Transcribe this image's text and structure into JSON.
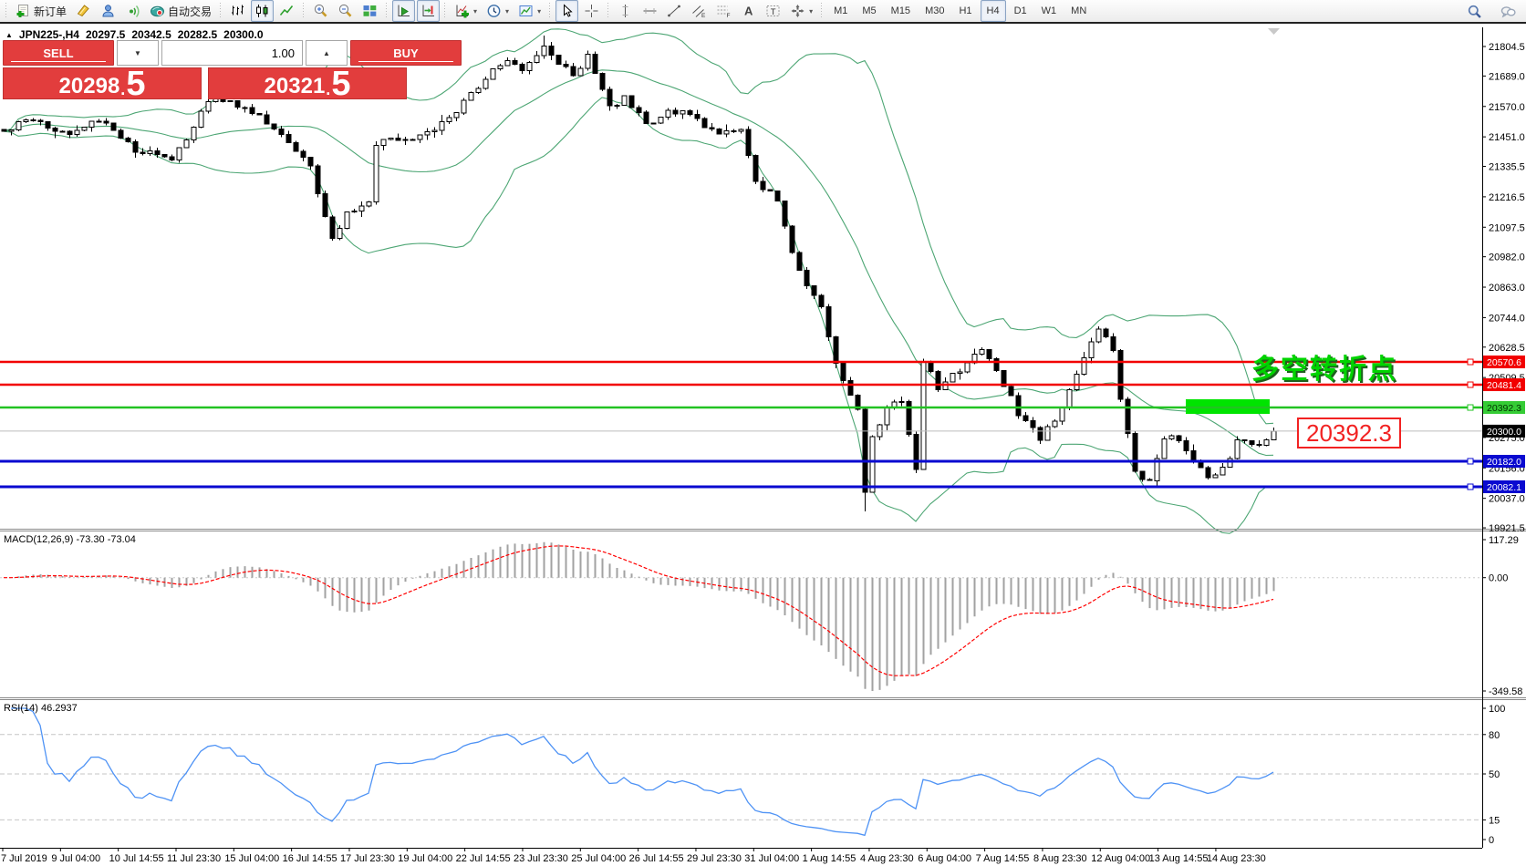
{
  "toolbar": {
    "groups": [
      {
        "items": [
          {
            "name": "new-order",
            "icon": "new-order",
            "label": "新订单"
          },
          {
            "name": "chart-list",
            "icon": "yellow-book"
          },
          {
            "name": "profile",
            "icon": "profile"
          },
          {
            "name": "signals",
            "icon": "signal"
          },
          {
            "name": "auto-trading",
            "icon": "autotrade",
            "label": "自动交易"
          }
        ]
      },
      {
        "items": [
          {
            "name": "bar-chart",
            "icon": "bars"
          },
          {
            "name": "candlestick-chart",
            "icon": "candles",
            "active": true
          },
          {
            "name": "line-chart",
            "icon": "linechart"
          }
        ]
      },
      {
        "items": [
          {
            "name": "zoom-in",
            "icon": "zoom-in"
          },
          {
            "name": "zoom-out",
            "icon": "zoom-out"
          },
          {
            "name": "tile-windows",
            "icon": "tiles"
          }
        ]
      },
      {
        "items": [
          {
            "name": "auto-scroll",
            "icon": "autoscroll",
            "active": true
          },
          {
            "name": "chart-shift",
            "icon": "shift",
            "active": true
          }
        ]
      },
      {
        "items": [
          {
            "name": "indicators",
            "icon": "indicators",
            "dropdown": true
          },
          {
            "name": "periods",
            "icon": "clock",
            "dropdown": true
          },
          {
            "name": "templates",
            "icon": "template",
            "dropdown": true
          }
        ]
      },
      {
        "items": [
          {
            "name": "cursor",
            "icon": "cursor",
            "active": true
          },
          {
            "name": "crosshair",
            "icon": "crosshair"
          }
        ]
      },
      {
        "items": [
          {
            "name": "vertical-line",
            "icon": "vline"
          },
          {
            "name": "horizontal-line",
            "icon": "hline"
          },
          {
            "name": "trendline",
            "icon": "trendline"
          },
          {
            "name": "equidistant-channel",
            "icon": "channel"
          },
          {
            "name": "fibonacci",
            "icon": "fibo"
          },
          {
            "name": "text",
            "icon": "text-a"
          },
          {
            "name": "text-label",
            "icon": "text-t"
          },
          {
            "name": "arrows",
            "icon": "arrows",
            "dropdown": true
          }
        ]
      },
      {
        "items": [
          {
            "name": "tf-m1",
            "text": "M1"
          },
          {
            "name": "tf-m5",
            "text": "M5"
          },
          {
            "name": "tf-m15",
            "text": "M15"
          },
          {
            "name": "tf-m30",
            "text": "M30"
          },
          {
            "name": "tf-h1",
            "text": "H1"
          },
          {
            "name": "tf-h4",
            "text": "H4",
            "active": true
          },
          {
            "name": "tf-d1",
            "text": "D1"
          },
          {
            "name": "tf-w1",
            "text": "W1"
          },
          {
            "name": "tf-mn",
            "text": "MN"
          }
        ]
      }
    ],
    "right_items": [
      {
        "name": "search",
        "icon": "search"
      },
      {
        "name": "chat",
        "icon": "chat"
      }
    ]
  },
  "chart": {
    "header": {
      "collapse": "▲",
      "symbol": "JPN225-,H4",
      "open": "20297.5",
      "high": "20342.5",
      "low": "20282.5",
      "close": "20300.0"
    },
    "trade_panel": {
      "sell_label": "SELL",
      "buy_label": "BUY",
      "volume": "1.00",
      "down_arrow": "▼",
      "up_arrow": "▲",
      "sell_int": "20298",
      "sell_sep": ".",
      "sell_frac": "5",
      "buy_int": "20321",
      "buy_sep": ".",
      "buy_frac": "5"
    },
    "annotations": {
      "turning_point": "多空转折点",
      "level_text": "20392.3"
    }
  },
  "chart_data": {
    "type": "candlestick",
    "symbol": "JPN225-",
    "timeframe": "H4",
    "title": "JPN225-,H4",
    "ohlc_header": {
      "open": 20297.5,
      "high": 20342.5,
      "low": 20282.5,
      "close": 20300.0
    },
    "y_ticks": [
      21804.5,
      21689.0,
      21570.0,
      21451.0,
      21335.5,
      21216.5,
      21097.5,
      20982.0,
      20863.0,
      20744.0,
      20628.5,
      20509.5,
      20275.0,
      20156.0,
      20037.0,
      19921.5
    ],
    "ylim": [
      19921.5,
      21850.0
    ],
    "x_labels": [
      "7 Jul 2019",
      "9 Jul 04:00",
      "10 Jul 14:55",
      "11 Jul 23:30",
      "15 Jul 04:00",
      "16 Jul 14:55",
      "17 Jul 23:30",
      "19 Jul 04:00",
      "22 Jul 14:55",
      "23 Jul 23:30",
      "25 Jul 04:00",
      "26 Jul 14:55",
      "29 Jul 23:30",
      "31 Jul 04:00",
      "1 Aug 14:55",
      "4 Aug 23:30",
      "6 Aug 04:00",
      "7 Aug 14:55",
      "8 Aug 23:30",
      "12 Aug 04:00",
      "13 Aug 14:55",
      "14 Aug 23:30"
    ],
    "hlines": [
      {
        "price": 20570.6,
        "label": "20570.6",
        "color": "#f20000",
        "width": 2.5,
        "box": "#f20000",
        "fg": "#ffffff",
        "handle": true
      },
      {
        "price": 20481.4,
        "label": "20481.4",
        "color": "#f20000",
        "width": 2.5,
        "box": "#f20000",
        "fg": "#ffffff",
        "handle": true
      },
      {
        "price": 20392.3,
        "label": "20392.3",
        "color": "#22c322",
        "width": 2.5,
        "box": "#35cc35",
        "fg": "#003300",
        "handle": true
      },
      {
        "price": 20300.0,
        "label": "20300.0",
        "color": "#bcbcbc",
        "width": 1,
        "box": "#000000",
        "fg": "#ffffff",
        "handle": false
      },
      {
        "price": 20182.0,
        "label": "20182.0",
        "color": "#0a0ad0",
        "width": 3,
        "box": "#0a0ad0",
        "fg": "#ffffff",
        "handle": true
      },
      {
        "price": 20082.1,
        "label": "20082.1",
        "color": "#0a0ad0",
        "width": 3,
        "box": "#0a0ad0",
        "fg": "#ffffff",
        "handle": true
      }
    ],
    "bollinger": {
      "period": 20,
      "deviation": 2,
      "color": "#4da674"
    },
    "candles": {
      "count": 175,
      "noise": 12,
      "last_close": 20300.0,
      "bull_fill": "#ffffff",
      "bear_fill": "#000000",
      "outline": "#000000",
      "keypoints": [
        [
          0,
          21480
        ],
        [
          4,
          21520
        ],
        [
          9,
          21450
        ],
        [
          13,
          21520
        ],
        [
          18,
          21400
        ],
        [
          23,
          21365
        ],
        [
          26,
          21480
        ],
        [
          28,
          21600
        ],
        [
          33,
          21570
        ],
        [
          38,
          21470
        ],
        [
          42,
          21330
        ],
        [
          45,
          21060
        ],
        [
          47,
          21150
        ],
        [
          50,
          21200
        ],
        [
          51,
          21430
        ],
        [
          56,
          21440
        ],
        [
          61,
          21520
        ],
        [
          65,
          21650
        ],
        [
          69,
          21760
        ],
        [
          71,
          21700
        ],
        [
          74,
          21810
        ],
        [
          76,
          21740
        ],
        [
          78,
          21690
        ],
        [
          80,
          21770
        ],
        [
          82,
          21640
        ],
        [
          83,
          21560
        ],
        [
          85,
          21610
        ],
        [
          88,
          21500
        ],
        [
          91,
          21545
        ],
        [
          93,
          21560
        ],
        [
          96,
          21490
        ],
        [
          98,
          21470
        ],
        [
          101,
          21480
        ],
        [
          103,
          21270
        ],
        [
          105,
          21230
        ],
        [
          106,
          21190
        ],
        [
          108,
          21000
        ],
        [
          110,
          20870
        ],
        [
          112,
          20780
        ],
        [
          114,
          20560
        ],
        [
          116,
          20430
        ],
        [
          117,
          20380
        ],
        [
          118,
          20060
        ],
        [
          119,
          20280
        ],
        [
          121,
          20390
        ],
        [
          123,
          20420
        ],
        [
          125,
          20160
        ],
        [
          126,
          20580
        ],
        [
          128,
          20470
        ],
        [
          131,
          20540
        ],
        [
          134,
          20620
        ],
        [
          136,
          20540
        ],
        [
          139,
          20370
        ],
        [
          142,
          20270
        ],
        [
          145,
          20390
        ],
        [
          148,
          20580
        ],
        [
          150,
          20700
        ],
        [
          152,
          20620
        ],
        [
          153,
          20430
        ],
        [
          155,
          20140
        ],
        [
          157,
          20100
        ],
        [
          159,
          20280
        ],
        [
          161,
          20260
        ],
        [
          163,
          20180
        ],
        [
          165,
          20120
        ],
        [
          167,
          20150
        ],
        [
          169,
          20260
        ],
        [
          172,
          20240
        ],
        [
          174,
          20300
        ]
      ],
      "low_spike": {
        "index": 118,
        "price": 19985
      },
      "high_spike": {
        "index": 74,
        "price": 21848
      }
    },
    "macd": {
      "label": "MACD(12,26,9) -73.30 -73.04",
      "value": -73.3,
      "signal": -73.04,
      "ticks": [
        {
          "v": "117.29"
        },
        {
          "v": "0.00"
        },
        {
          "v": "-349.58"
        }
      ],
      "range": [
        117.29,
        -349.58
      ],
      "hist_color": "#a2a2a2",
      "signal_color": "#ff0000"
    },
    "rsi": {
      "label": "RSI(14) 46.2937",
      "value": 46.2937,
      "ticks": [
        {
          "v": "100",
          "rv": 100
        },
        {
          "v": "80",
          "rv": 80,
          "dashed": true
        },
        {
          "v": "50",
          "rv": 50,
          "dashed": true
        },
        {
          "v": "15",
          "rv": 15,
          "dashed": true
        },
        {
          "v": "0",
          "rv": 0
        }
      ],
      "range": [
        0,
        100
      ],
      "color": "#4f93f5"
    },
    "highlight_rect": {
      "x": 1300,
      "y": 438,
      "w": 92,
      "h": 16,
      "color": "#00e400"
    },
    "annotations": [
      {
        "text": "多空转折点",
        "color": "#00d400"
      },
      {
        "text": "20392.3",
        "color": "#f22222"
      }
    ]
  }
}
